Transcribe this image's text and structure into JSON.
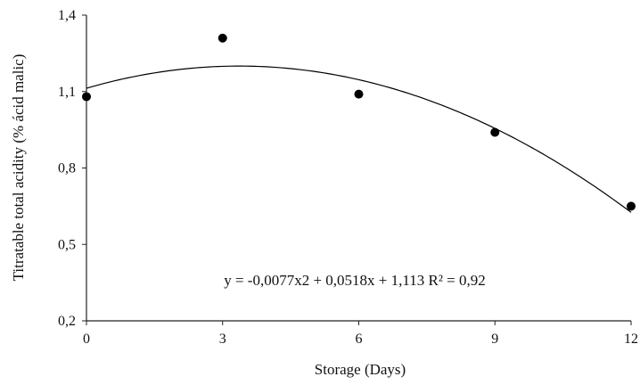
{
  "chart_data": {
    "type": "scatter",
    "title": "",
    "xlabel": "Storage (Days)",
    "ylabel": "Titratable total acidity (% ácid malic)",
    "xlim": [
      0,
      12
    ],
    "ylim": [
      0.2,
      1.4
    ],
    "x_ticks": [
      0,
      3,
      6,
      9,
      12
    ],
    "x_tick_labels": [
      "0",
      "3",
      "6",
      "9",
      "12"
    ],
    "y_ticks": [
      0.2,
      0.5,
      0.8,
      1.1,
      1.4
    ],
    "y_tick_labels": [
      "0,2",
      "0,5",
      "0,8",
      "1,1",
      "1,4"
    ],
    "grid": false,
    "legend": "none",
    "series": [
      {
        "x": [
          0,
          3,
          6,
          9,
          12
        ],
        "y": [
          1.08,
          1.31,
          1.09,
          0.94,
          0.65
        ],
        "marker": "filled-circle",
        "color": "#000000"
      }
    ],
    "trendline": {
      "type": "polynomial",
      "coefficients": {
        "a": -0.0077,
        "b": 0.0518,
        "c": 1.113
      },
      "r2": 0.92,
      "color": "#000000"
    },
    "annotation": "y = -0,0077x2 + 0,0518x + 1,113 R² = 0,92"
  }
}
